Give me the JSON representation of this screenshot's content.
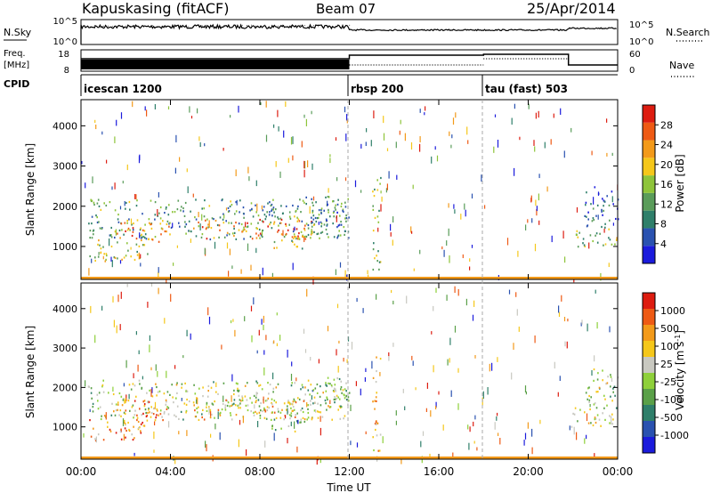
{
  "header": {
    "station": "Kapuskasing (fitACF)",
    "beam": "Beam 07",
    "date": "25/Apr/2014"
  },
  "nsky_panel": {
    "left_label": "N.Sky",
    "left_ticks": [
      "10^5",
      "10^0"
    ],
    "right_ticks": [
      "10^5",
      "10^0"
    ],
    "right_label": "N.Search"
  },
  "freq_panel": {
    "left_label_top": "Freq.",
    "left_label_unit": "[MHz]",
    "left_ticks": [
      "18",
      "8"
    ],
    "right_ticks": [
      "60",
      "0"
    ],
    "right_label": "Nave"
  },
  "cpid_panel": {
    "label": "CPID",
    "modes": [
      {
        "name": "icescan 1200",
        "start_hour": 0
      },
      {
        "name": "rbsp 200",
        "start_hour": 12
      },
      {
        "name": "tau (fast) 503",
        "start_hour": 18
      }
    ]
  },
  "chart_data": [
    {
      "type": "heatmap",
      "name": "power",
      "ylabel": "Slant Range [km]",
      "ylim": [
        180,
        4650
      ],
      "yticks": [
        1000,
        2000,
        3000,
        4000
      ],
      "xlim": [
        0,
        24
      ],
      "colorbar": {
        "label": "Power [dB]",
        "tick_labels": [
          "28",
          "24",
          "20",
          "16",
          "12",
          "8",
          "4"
        ],
        "colors": [
          "#1b1bdc",
          "#2a52b0",
          "#2f7f6a",
          "#5a9c5a",
          "#8ec43a",
          "#f5c71a",
          "#f39a1a",
          "#ee5a14",
          "#dd1c10"
        ]
      },
      "echo_regions": [
        {
          "t0": 0.3,
          "t1": 12.0,
          "r0": 1200,
          "r1": 2200,
          "level": 0.35
        },
        {
          "t0": 0.3,
          "t1": 3.0,
          "r0": 650,
          "r1": 1200,
          "level": 0.55
        },
        {
          "t0": 1.5,
          "t1": 4.0,
          "r0": 1100,
          "r1": 1700,
          "level": 0.7
        },
        {
          "t0": 5.0,
          "t1": 10.5,
          "r0": 1200,
          "r1": 1700,
          "level": 0.75
        },
        {
          "t0": 8.5,
          "t1": 10.0,
          "r0": 900,
          "r1": 1300,
          "level": 0.5
        },
        {
          "t0": 10.0,
          "t1": 12.0,
          "r0": 1500,
          "r1": 2300,
          "level": 0.3
        },
        {
          "t0": 13.0,
          "t1": 13.4,
          "r0": 400,
          "r1": 2800,
          "level": 0.45
        },
        {
          "t0": 21.8,
          "t1": 24.0,
          "r0": 1000,
          "r1": 1500,
          "level": 0.45
        },
        {
          "t0": 22.5,
          "t1": 24.0,
          "r0": 1500,
          "r1": 2500,
          "level": 0.2
        }
      ]
    },
    {
      "type": "heatmap",
      "name": "velocity",
      "ylabel": "Slant Range [km]",
      "ylim": [
        180,
        4650
      ],
      "yticks": [
        1000,
        2000,
        3000,
        4000
      ],
      "xlim": [
        0,
        24
      ],
      "xlabel": "Time UT",
      "xticks": [
        "00:00",
        "04:00",
        "08:00",
        "12:00",
        "16:00",
        "20:00",
        "00:00"
      ],
      "colorbar": {
        "label": "Velocity [m s^-1]",
        "tick_labels": [
          "1000",
          "500",
          "100",
          "25",
          "-25",
          "-100",
          "-500",
          "-1000"
        ],
        "colors": [
          "#1b1bdc",
          "#2a52b0",
          "#2f7f6a",
          "#5aa048",
          "#8ed03a",
          "#c8c8c0",
          "#f5c71a",
          "#f39a1a",
          "#ee5a14",
          "#dd1c10"
        ]
      },
      "echo_regions": [
        {
          "t0": 0.3,
          "t1": 12.0,
          "r0": 1200,
          "r1": 2200,
          "level": 0.5
        },
        {
          "t0": 0.3,
          "t1": 3.0,
          "r0": 650,
          "r1": 1200,
          "level": 0.75
        },
        {
          "t0": 1.5,
          "t1": 4.0,
          "r0": 1100,
          "r1": 1700,
          "level": 0.8
        },
        {
          "t0": 5.0,
          "t1": 10.5,
          "r0": 1200,
          "r1": 1700,
          "level": 0.65
        },
        {
          "t0": 8.5,
          "t1": 10.0,
          "r0": 900,
          "r1": 1300,
          "level": 0.45
        },
        {
          "t0": 10.0,
          "t1": 12.0,
          "r0": 1500,
          "r1": 2300,
          "level": 0.4
        },
        {
          "t0": 13.0,
          "t1": 13.4,
          "r0": 400,
          "r1": 2800,
          "level": 0.7
        },
        {
          "t0": 21.8,
          "t1": 24.0,
          "r0": 1000,
          "r1": 1500,
          "level": 0.5
        },
        {
          "t0": 22.5,
          "t1": 24.0,
          "r0": 1500,
          "r1": 2500,
          "level": 0.5
        }
      ]
    }
  ]
}
